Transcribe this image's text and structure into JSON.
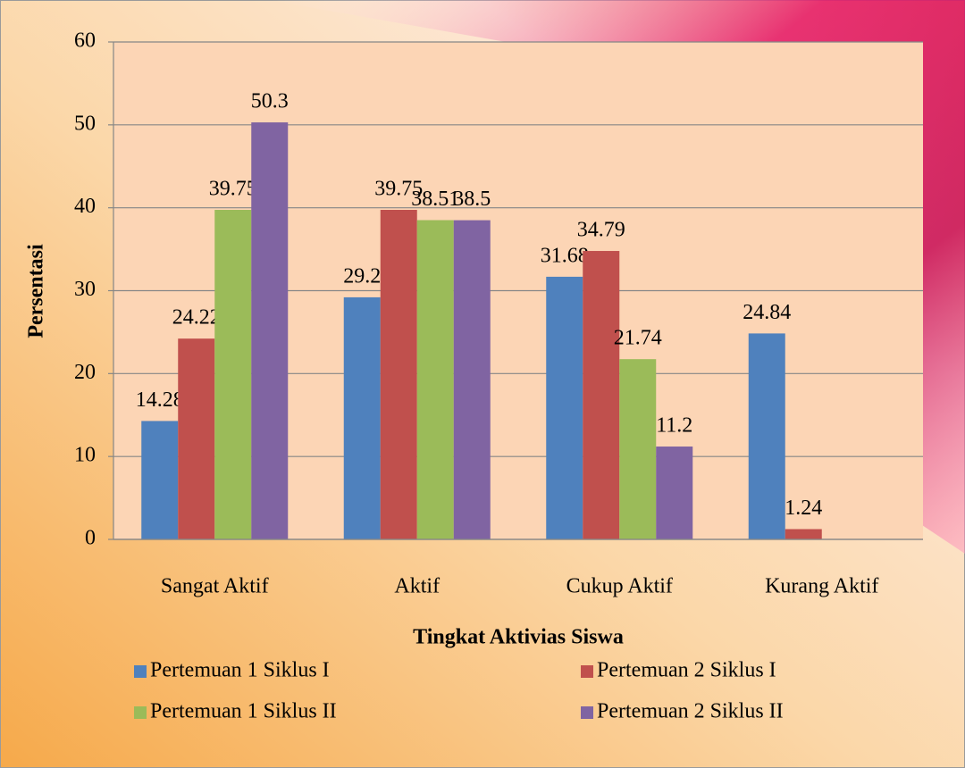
{
  "chart_data": {
    "type": "bar",
    "categories": [
      "Sangat Aktif",
      "Aktif",
      "Cukup Aktif",
      "Kurang Aktif"
    ],
    "series": [
      {
        "name": "Pertemuan 1 Siklus I",
        "color": "#4f81bd",
        "values": [
          14.28,
          29.2,
          31.68,
          24.84
        ]
      },
      {
        "name": "Pertemuan 2 Siklus I",
        "color": "#c0504d",
        "values": [
          24.22,
          39.75,
          34.79,
          1.24
        ]
      },
      {
        "name": "Pertemuan 1 Siklus II",
        "color": "#9bbb59",
        "values": [
          39.75,
          38.51,
          21.74,
          null
        ]
      },
      {
        "name": "Pertemuan 2 Siklus II",
        "color": "#8064a2",
        "values": [
          50.3,
          38.5,
          11.2,
          null
        ]
      }
    ],
    "x_label": "Tingkat Aktivias Siswa",
    "y_label": "Persentasi",
    "ylim": [
      0,
      60
    ],
    "yticks": [
      0,
      10,
      20,
      30,
      40,
      50,
      60
    ],
    "grid": true,
    "legend": "bottom"
  }
}
